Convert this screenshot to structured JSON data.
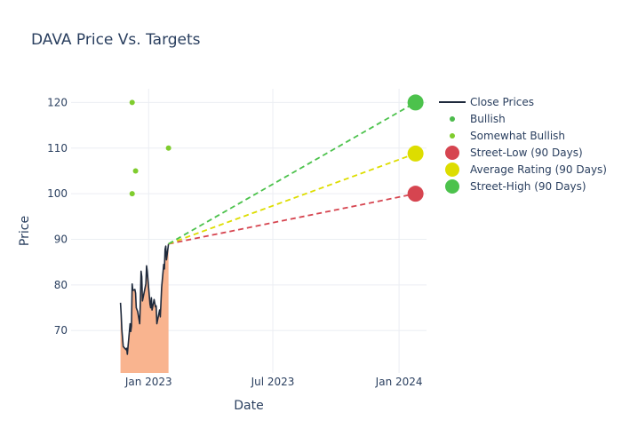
{
  "chart_data": {
    "type": "line",
    "title": "DAVA Price Vs. Targets",
    "xlabel": "Date",
    "ylabel": "Price",
    "xlim": [
      "2022-09-10",
      "2024-02-10"
    ],
    "ylim": [
      60.7,
      123
    ],
    "x_ticks": [
      {
        "date": "2023-01-01",
        "label": "Jan 2023"
      },
      {
        "date": "2023-07-01",
        "label": "Jul 2023"
      },
      {
        "date": "2024-01-01",
        "label": "Jan 2024"
      }
    ],
    "y_ticks": [
      70,
      80,
      90,
      100,
      110,
      120
    ],
    "grid": true,
    "legend_position": "right",
    "series": [
      {
        "name": "Close Prices",
        "kind": "line",
        "color": "#1f2a3c",
        "fill_color": "#f9b48f",
        "points": [
          [
            "2022-11-21",
            76.1
          ],
          [
            "2022-11-22",
            73.5
          ],
          [
            "2022-11-23",
            70.2
          ],
          [
            "2022-11-25",
            66.5
          ],
          [
            "2022-11-28",
            66.0
          ],
          [
            "2022-11-29",
            65.8
          ],
          [
            "2022-11-30",
            66.1
          ],
          [
            "2022-12-01",
            64.8
          ],
          [
            "2022-12-02",
            66.5
          ],
          [
            "2022-12-05",
            71.5
          ],
          [
            "2022-12-06",
            69.8
          ],
          [
            "2022-12-07",
            71.0
          ],
          [
            "2022-12-08",
            80.2
          ],
          [
            "2022-12-09",
            78.8
          ],
          [
            "2022-12-12",
            79.0
          ],
          [
            "2022-12-13",
            78.2
          ],
          [
            "2022-12-14",
            75.0
          ],
          [
            "2022-12-15",
            74.6
          ],
          [
            "2022-12-16",
            74.2
          ],
          [
            "2022-12-19",
            71.5
          ],
          [
            "2022-12-20",
            76.5
          ],
          [
            "2022-12-21",
            83.0
          ],
          [
            "2022-12-22",
            81.8
          ],
          [
            "2022-12-23",
            76.5
          ],
          [
            "2022-12-27",
            79.5
          ],
          [
            "2022-12-28",
            80.2
          ],
          [
            "2022-12-29",
            84.2
          ],
          [
            "2022-12-30",
            83.0
          ],
          [
            "2023-01-03",
            75.8
          ],
          [
            "2023-01-04",
            75.0
          ],
          [
            "2023-01-05",
            77.2
          ],
          [
            "2023-01-06",
            74.5
          ],
          [
            "2023-01-09",
            76.8
          ],
          [
            "2023-01-10",
            76.0
          ],
          [
            "2023-01-11",
            75.2
          ],
          [
            "2023-01-12",
            75.4
          ],
          [
            "2023-01-13",
            71.5
          ],
          [
            "2023-01-17",
            74.5
          ],
          [
            "2023-01-18",
            73.0
          ],
          [
            "2023-01-19",
            76.2
          ],
          [
            "2023-01-20",
            79.5
          ],
          [
            "2023-01-23",
            84.5
          ],
          [
            "2023-01-24",
            83.5
          ],
          [
            "2023-01-25",
            87.8
          ],
          [
            "2023-01-26",
            88.5
          ],
          [
            "2023-01-27",
            85.5
          ],
          [
            "2023-01-30",
            89.0
          ]
        ]
      },
      {
        "name": "Bullish",
        "kind": "markers",
        "color": "#4cbb4c",
        "points": []
      },
      {
        "name": "Somewhat Bullish",
        "kind": "markers",
        "color": "#7fcc2e",
        "points": [
          [
            "2022-12-08",
            120
          ],
          [
            "2022-12-08",
            100
          ],
          [
            "2022-12-13",
            105
          ],
          [
            "2023-01-30",
            110
          ]
        ]
      },
      {
        "name": "Street-Low (90 Days)",
        "kind": "target",
        "color": "#d64550",
        "start": [
          "2023-01-30",
          89.0
        ],
        "end": [
          "2024-01-25",
          100
        ]
      },
      {
        "name": "Average Rating (90 Days)",
        "kind": "target",
        "color": "#dddd00",
        "start": [
          "2023-01-30",
          89.0
        ],
        "end": [
          "2024-01-25",
          108.8
        ]
      },
      {
        "name": "Street-High (90 Days)",
        "kind": "target",
        "color": "#4cc24c",
        "start": [
          "2023-01-30",
          89.0
        ],
        "end": [
          "2024-01-25",
          120
        ]
      }
    ]
  }
}
